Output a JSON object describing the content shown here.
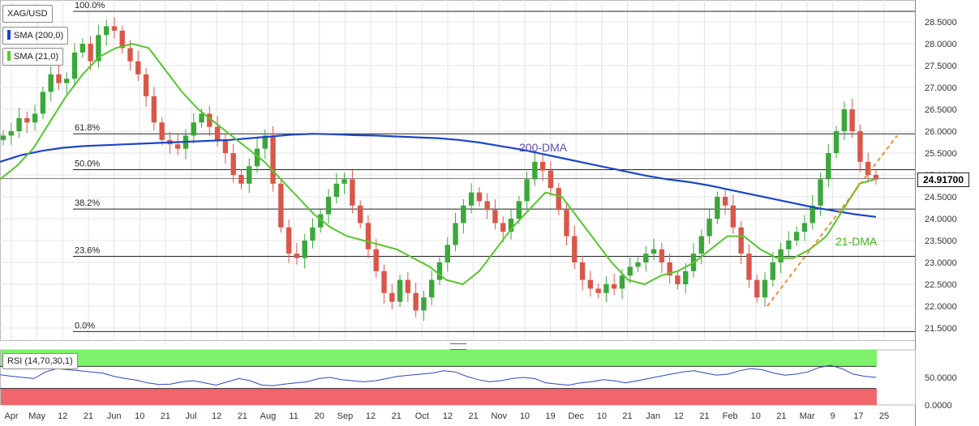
{
  "chart_data": [
    {
      "type": "candlestick",
      "symbol": "XAG/USD",
      "indicators": [
        {
          "name": "SMA (200,0)",
          "color": "#1b45c9",
          "annotation": "200-DMA"
        },
        {
          "name": "SMA (21,0)",
          "color": "#55c72b",
          "annotation": "21-DMA"
        }
      ],
      "last_price": "24.91700",
      "ylim": [
        21.2,
        28.9
      ],
      "y_ticks": [
        "28.5000",
        "28.0000",
        "27.5000",
        "27.0000",
        "26.5000",
        "26.0000",
        "25.5000",
        "25.0000",
        "24.5000",
        "24.0000",
        "23.5000",
        "23.0000",
        "22.5000",
        "22.0000",
        "21.5000"
      ],
      "x_ticks": [
        "Apr",
        "May",
        "12",
        "21",
        "Jun",
        "10",
        "21",
        "Jul",
        "12",
        "21",
        "Aug",
        "11",
        "20",
        "Sep",
        "12",
        "21",
        "Oct",
        "12",
        "21",
        "Nov",
        "10",
        "19",
        "Dec",
        "10",
        "21",
        "Jan",
        "12",
        "21",
        "Feb",
        "10",
        "21",
        "Mar",
        "9",
        "17",
        "25"
      ],
      "fibonacci_levels": [
        {
          "label": "100.0%",
          "value": 28.74
        },
        {
          "label": "61.8%",
          "value": 25.94
        },
        {
          "label": "50.0%",
          "value": 25.12
        },
        {
          "label": "38.2%",
          "value": 24.22
        },
        {
          "label": "23.6%",
          "value": 23.14
        },
        {
          "label": "0.0%",
          "value": 21.42
        }
      ],
      "trendline_color": "#f5841f",
      "price_series": [
        25.9,
        26.0,
        26.3,
        26.2,
        26.4,
        26.9,
        27.3,
        27.1,
        27.2,
        27.8,
        28.0,
        27.6,
        28.2,
        28.4,
        28.3,
        27.9,
        27.6,
        27.3,
        26.8,
        26.2,
        25.8,
        25.7,
        25.6,
        25.9,
        26.2,
        26.4,
        26.1,
        25.8,
        25.5,
        25.0,
        24.8,
        25.2,
        25.6,
        25.9,
        24.8,
        23.8,
        23.2,
        23.1,
        23.5,
        23.8,
        24.1,
        24.5,
        24.8,
        24.9,
        24.3,
        23.9,
        23.3,
        22.8,
        22.3,
        22.1,
        22.6,
        22.3,
        21.9,
        22.2,
        22.6,
        23.0,
        23.4,
        23.9,
        24.3,
        24.6,
        24.4,
        24.2,
        23.9,
        23.7,
        24.0,
        24.4,
        24.9,
        25.3,
        25.1,
        24.7,
        24.2,
        23.6,
        23.0,
        22.6,
        22.4,
        22.3,
        22.5,
        22.4,
        22.7,
        22.9,
        23.0,
        23.2,
        23.3,
        23.0,
        22.7,
        22.5,
        22.8,
        23.2,
        23.6,
        24.0,
        24.5,
        24.3,
        23.8,
        23.2,
        22.6,
        22.2,
        22.6,
        23.0,
        23.3,
        23.5,
        23.7,
        23.9,
        24.3,
        24.9,
        25.5,
        26.0,
        26.5,
        26.0,
        25.3,
        25.0,
        24.9
      ],
      "sma200_series": [
        25.3,
        25.45,
        25.55,
        25.62,
        25.66,
        25.68,
        25.7,
        25.72,
        25.74,
        25.76,
        25.78,
        25.8,
        25.84,
        25.88,
        25.92,
        25.94,
        25.93,
        25.91,
        25.9,
        25.88,
        25.86,
        25.84,
        25.8,
        25.74,
        25.66,
        25.58,
        25.48,
        25.38,
        25.28,
        25.18,
        25.08,
        24.98,
        24.9,
        24.84,
        24.76,
        24.66,
        24.56,
        24.46,
        24.36,
        24.26,
        24.18,
        24.1,
        24.04
      ],
      "sma21_series": [
        24.9,
        25.2,
        25.6,
        26.2,
        26.8,
        27.3,
        27.7,
        27.9,
        28.0,
        27.9,
        27.4,
        26.9,
        26.5,
        26.2,
        25.9,
        25.6,
        25.3,
        24.9,
        24.5,
        24.1,
        23.8,
        23.6,
        23.5,
        23.4,
        23.3,
        23.1,
        22.9,
        22.6,
        22.5,
        22.8,
        23.3,
        23.8,
        24.2,
        24.6,
        24.5,
        24.0,
        23.5,
        23.0,
        22.6,
        22.5,
        22.7,
        22.8,
        23.0,
        23.3,
        23.6,
        23.6,
        23.3,
        23.1,
        23.1,
        23.3,
        23.6,
        24.2,
        24.8,
        24.91
      ]
    },
    {
      "type": "line",
      "indicator": "RSI (14,70,30,1)",
      "ylim": [
        0,
        100
      ],
      "overbought": 70,
      "oversold": 30,
      "y_ticks": [
        "50.0000",
        "0.0000"
      ],
      "rsi_series": [
        55,
        52,
        50,
        48,
        60,
        66,
        64,
        62,
        60,
        58,
        52,
        48,
        45,
        40,
        37,
        38,
        42,
        44,
        40,
        36,
        42,
        48,
        44,
        36,
        35,
        38,
        40,
        42,
        48,
        50,
        46,
        44,
        42,
        44,
        48,
        52,
        54,
        56,
        58,
        62,
        60,
        52,
        46,
        42,
        44,
        48,
        50,
        48,
        40,
        38,
        36,
        40,
        42,
        46,
        44,
        40,
        44,
        48,
        52,
        56,
        60,
        62,
        58,
        54,
        56,
        62,
        66,
        64,
        58,
        54,
        56,
        60,
        68,
        72,
        66,
        56,
        52,
        50
      ]
    }
  ]
}
